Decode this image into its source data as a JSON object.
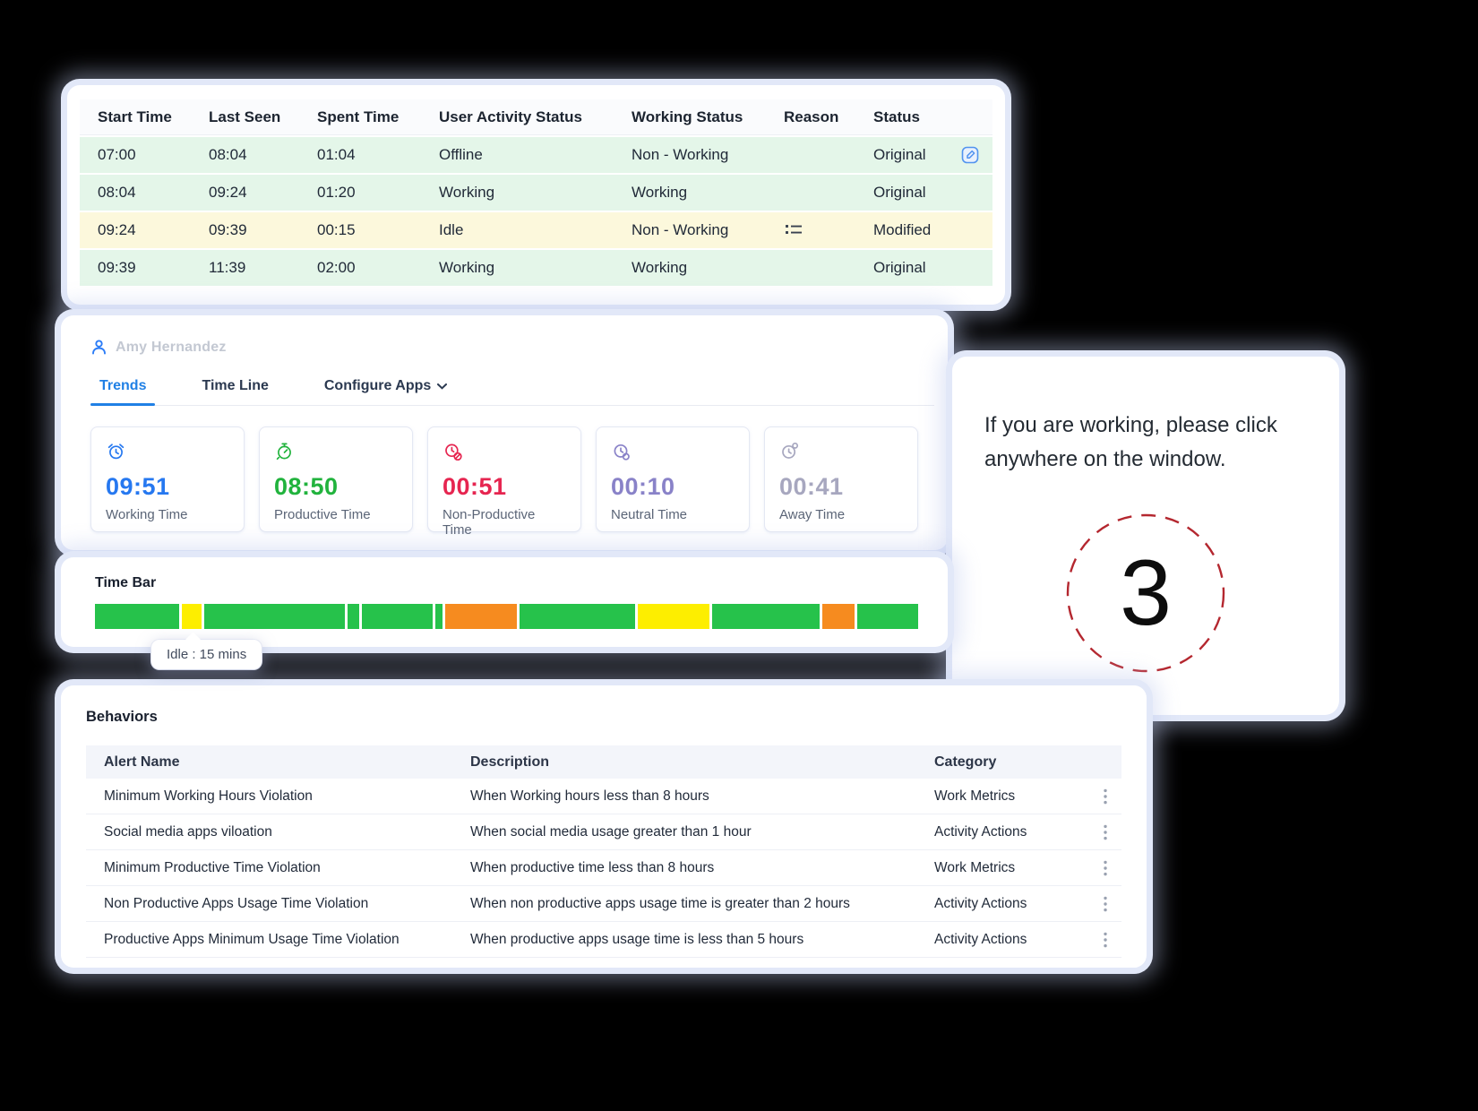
{
  "palette": {
    "accent_blue": "#2080e5",
    "row_green": "#e4f6e9",
    "row_yellow": "#fcf8dc",
    "circle_red": "#b4272f"
  },
  "activity_table": {
    "columns": [
      "Start Time",
      "Last Seen",
      "Spent Time",
      "User Activity Status",
      "Working Status",
      "Reason",
      "Status"
    ],
    "rows": [
      {
        "start": "07:00",
        "last_seen": "08:04",
        "spent": "01:04",
        "activity": "Offline",
        "working": "Non - Working",
        "reason_icon": "",
        "status": "Original",
        "row_color": "green",
        "action_icon": "edit-icon"
      },
      {
        "start": "08:04",
        "last_seen": "09:24",
        "spent": "01:20",
        "activity": "Working",
        "working": "Working",
        "reason_icon": "",
        "status": "Original",
        "row_color": "green",
        "action_icon": ""
      },
      {
        "start": "09:24",
        "last_seen": "09:39",
        "spent": "00:15",
        "activity": "Idle",
        "working": "Non - Working",
        "reason_icon": "list-icon",
        "status": "Modified",
        "row_color": "yellow",
        "action_icon": ""
      },
      {
        "start": "09:39",
        "last_seen": "11:39",
        "spent": "02:00",
        "activity": "Working",
        "working": "Working",
        "reason_icon": "",
        "status": "Original",
        "row_color": "green",
        "action_icon": ""
      }
    ]
  },
  "user_panel": {
    "user_name": "Amy Hernandez",
    "user_icon": "person-icon",
    "tabs": [
      {
        "label": "Trends",
        "active": true
      },
      {
        "label": "Time Line",
        "active": false
      },
      {
        "label": "Configure Apps",
        "active": false,
        "icon": "chevron-down-icon"
      }
    ],
    "metrics": [
      {
        "value": "09:51",
        "label": "Working Time",
        "color": "#2678f0",
        "icon": "alarm-clock-icon"
      },
      {
        "value": "08:50",
        "label": "Productive Time",
        "color": "#21b33d",
        "icon": "stopwatch-icon"
      },
      {
        "value": "00:51",
        "label": "Non-Productive Time",
        "color": "#e62550",
        "icon": "gauge-blocked-icon"
      },
      {
        "value": "00:10",
        "label": "Neutral Time",
        "color": "#8982c8",
        "icon": "clock-neutral-icon"
      },
      {
        "value": "00:41",
        "label": "Away Time",
        "color": "#a7a7bf",
        "icon": "clock-away-icon"
      }
    ]
  },
  "time_bar": {
    "title": "Time Bar",
    "tooltip": "Idle : 15 mins",
    "palette": {
      "green": "#26c24b",
      "yellow": "#fdee00",
      "orange": "#f68b1f"
    },
    "segments": [
      {
        "c": "green",
        "w": 10.2
      },
      {
        "c": "yellow",
        "w": 2.3
      },
      {
        "c": "green",
        "w": 17.0
      },
      {
        "c": "green",
        "w": 1.4
      },
      {
        "c": "green",
        "w": 8.6
      },
      {
        "c": "green",
        "w": 0.8
      },
      {
        "c": "orange",
        "w": 8.7
      },
      {
        "c": "green",
        "w": 13.9
      },
      {
        "c": "yellow",
        "w": 8.7
      },
      {
        "c": "green",
        "w": 13.0
      },
      {
        "c": "orange",
        "w": 3.8
      },
      {
        "c": "green",
        "w": 7.4
      }
    ]
  },
  "reminder": {
    "message": "If you are working, please click anywhere on the window.",
    "countdown": "3"
  },
  "behaviors": {
    "title": "Behaviors",
    "columns": [
      "Alert Name",
      "Description",
      "Category"
    ],
    "row_action_icon": "kebab-menu-icon",
    "rows": [
      [
        "Minimum Working Hours Violation",
        "When Working hours less than 8 hours",
        "Work Metrics"
      ],
      [
        "Social media apps viloation",
        "When social media usage greater than 1 hour",
        "Activity Actions"
      ],
      [
        "Minimum Productive Time Violation",
        "When productive time less than 8 hours",
        "Work Metrics"
      ],
      [
        "Non Productive Apps Usage Time Violation",
        "When non productive apps usage time is greater than 2 hours",
        "Activity Actions"
      ],
      [
        "Productive Apps Minimum Usage Time Violation",
        "When productive apps usage time is less than 5 hours",
        "Activity Actions"
      ]
    ]
  }
}
